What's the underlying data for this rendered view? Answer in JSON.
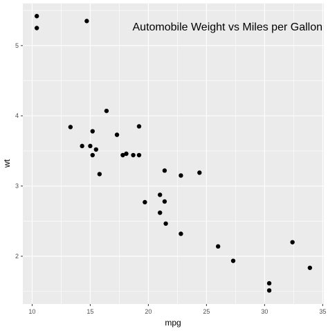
{
  "chart_data": {
    "type": "scatter",
    "title": "Automobile Weight vs Miles per Gallon",
    "xlabel": "mpg",
    "ylabel": "wt",
    "xlim": [
      9.2,
      35.1
    ],
    "ylim": [
      1.32,
      5.6
    ],
    "x_ticks": [
      "10",
      "15",
      "20",
      "25",
      "30",
      "35"
    ],
    "y_ticks": [
      "2",
      "3",
      "4",
      "5"
    ],
    "x_tick_values": [
      10,
      15,
      20,
      25,
      30,
      35
    ],
    "y_tick_values": [
      2,
      3,
      4,
      5
    ],
    "grid": true,
    "title_position": "top-right inside panel",
    "colors": {
      "panel_background": "#ebebeb",
      "grid_major": "#ffffff",
      "point": "#000000"
    },
    "points": [
      {
        "x": 10.4,
        "y": 5.42
      },
      {
        "x": 10.4,
        "y": 5.25
      },
      {
        "x": 14.7,
        "y": 5.35
      },
      {
        "x": 16.4,
        "y": 4.07
      },
      {
        "x": 13.3,
        "y": 3.84
      },
      {
        "x": 19.2,
        "y": 3.85
      },
      {
        "x": 15.2,
        "y": 3.78
      },
      {
        "x": 17.3,
        "y": 3.73
      },
      {
        "x": 14.3,
        "y": 3.57
      },
      {
        "x": 15.0,
        "y": 3.57
      },
      {
        "x": 15.5,
        "y": 3.52
      },
      {
        "x": 18.1,
        "y": 3.46
      },
      {
        "x": 17.8,
        "y": 3.44
      },
      {
        "x": 15.2,
        "y": 3.44
      },
      {
        "x": 18.7,
        "y": 3.44
      },
      {
        "x": 19.2,
        "y": 3.44
      },
      {
        "x": 21.4,
        "y": 3.22
      },
      {
        "x": 15.8,
        "y": 3.17
      },
      {
        "x": 22.8,
        "y": 3.15
      },
      {
        "x": 24.4,
        "y": 3.19
      },
      {
        "x": 21.0,
        "y": 2.875
      },
      {
        "x": 21.4,
        "y": 2.78
      },
      {
        "x": 19.7,
        "y": 2.77
      },
      {
        "x": 21.0,
        "y": 2.62
      },
      {
        "x": 21.5,
        "y": 2.465
      },
      {
        "x": 22.8,
        "y": 2.32
      },
      {
        "x": 26.0,
        "y": 2.14
      },
      {
        "x": 27.3,
        "y": 1.935
      },
      {
        "x": 32.4,
        "y": 2.2
      },
      {
        "x": 33.9,
        "y": 1.835
      },
      {
        "x": 30.4,
        "y": 1.615
      },
      {
        "x": 30.4,
        "y": 1.513
      }
    ]
  }
}
